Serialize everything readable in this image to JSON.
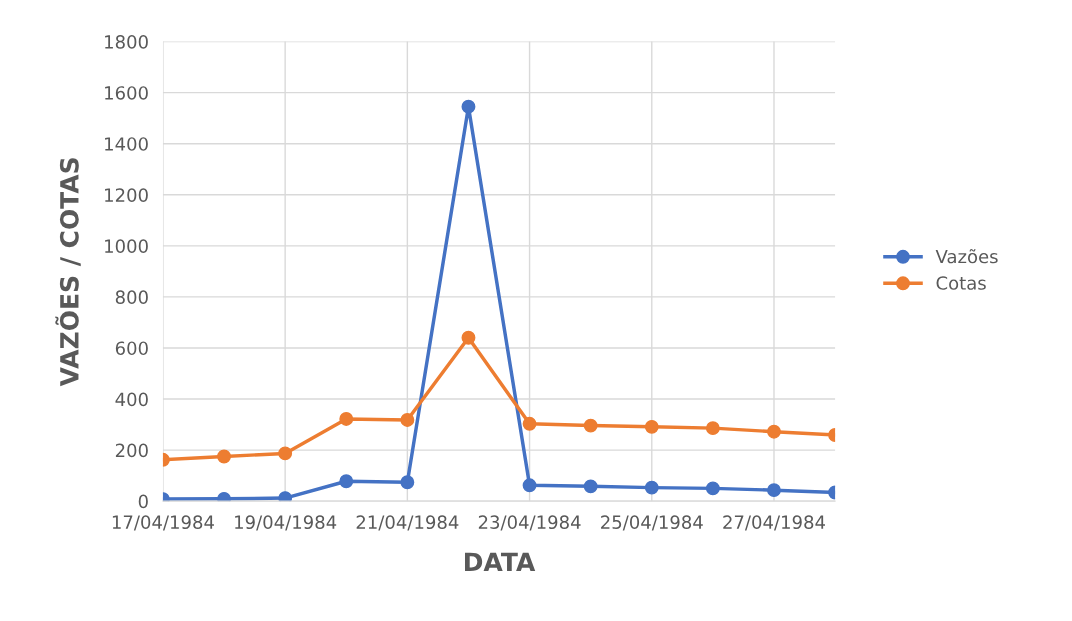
{
  "chart_data": {
    "type": "line",
    "xlabel": "DATA",
    "ylabel": "VAZÕES / COTAS",
    "x": [
      "1984-04-17",
      "1984-04-18",
      "1984-04-19",
      "1984-04-20",
      "1984-04-21",
      "1984-04-22",
      "1984-04-23",
      "1984-04-24",
      "1984-04-25",
      "1984-04-26",
      "1984-04-27",
      "1984-04-28"
    ],
    "series": [
      {
        "name": "Vazões",
        "color": "#4472c4",
        "values": [
          8,
          9,
          12,
          78,
          74,
          1545,
          62,
          58,
          53,
          50,
          43,
          34
        ]
      },
      {
        "name": "Cotas",
        "color": "#ed7d31",
        "values": [
          162,
          175,
          187,
          322,
          318,
          640,
          303,
          296,
          291,
          286,
          272,
          259
        ]
      }
    ],
    "xlim": [
      "1984-04-17",
      "1984-04-28"
    ],
    "xticks": [
      {
        "value": "1984-04-17",
        "label": "17/04/1984"
      },
      {
        "value": "1984-04-19",
        "label": "19/04/1984"
      },
      {
        "value": "1984-04-21",
        "label": "21/04/1984"
      },
      {
        "value": "1984-04-23",
        "label": "23/04/1984"
      },
      {
        "value": "1984-04-25",
        "label": "25/04/1984"
      },
      {
        "value": "1984-04-27",
        "label": "27/04/1984"
      }
    ],
    "ylim": [
      0,
      1800
    ],
    "yticks": [
      0,
      200,
      400,
      600,
      800,
      1000,
      1200,
      1400,
      1600,
      1800
    ],
    "grid": true,
    "legend": "right",
    "marker": "circle",
    "line_style": "solid"
  }
}
